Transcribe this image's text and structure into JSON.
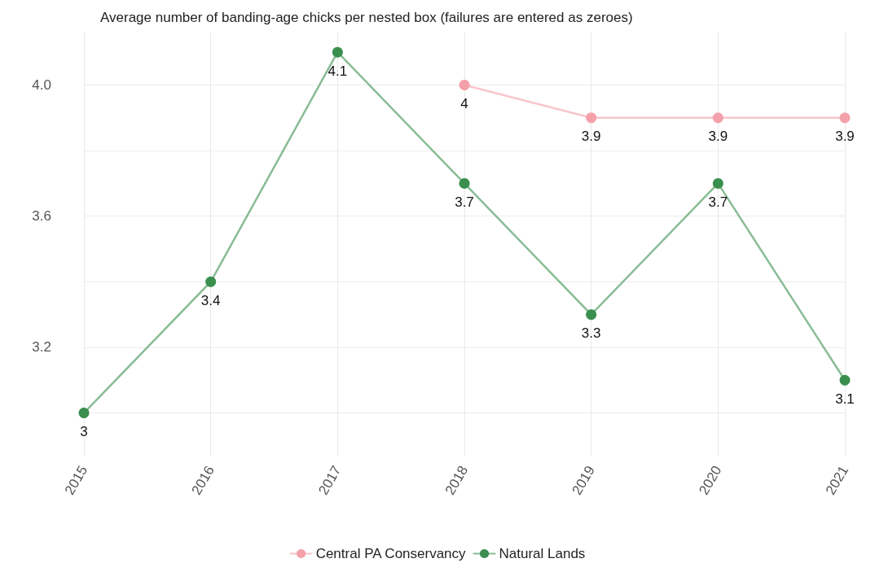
{
  "chart_data": {
    "type": "line",
    "title": "Average number of banding-age chicks per nested box (failures are entered as zeroes)",
    "categories": [
      "2015",
      "2016",
      "2017",
      "2018",
      "2019",
      "2020",
      "2021"
    ],
    "series": [
      {
        "name": "Central PA Conservancy",
        "color": "#f4a0aa",
        "values": [
          null,
          null,
          null,
          4,
          3.9,
          3.9,
          3.9
        ]
      },
      {
        "name": "Natural Lands",
        "color": "#3a8f4f",
        "values": [
          3,
          3.4,
          4.1,
          3.7,
          3.3,
          3.7,
          3.1
        ]
      }
    ],
    "ylim": [
      2.87,
      4.16
    ],
    "yticks": [
      {
        "value": 3.0,
        "label": null
      },
      {
        "value": 3.2,
        "label": "3.2"
      },
      {
        "value": 3.4,
        "label": null
      },
      {
        "value": 3.6,
        "label": "3.6"
      },
      {
        "value": 3.8,
        "label": null
      },
      {
        "value": 4.0,
        "label": "4.0"
      }
    ],
    "grid": true,
    "legend": "bottom",
    "marker": "circle",
    "line_style": "solid",
    "data_labels": true
  }
}
